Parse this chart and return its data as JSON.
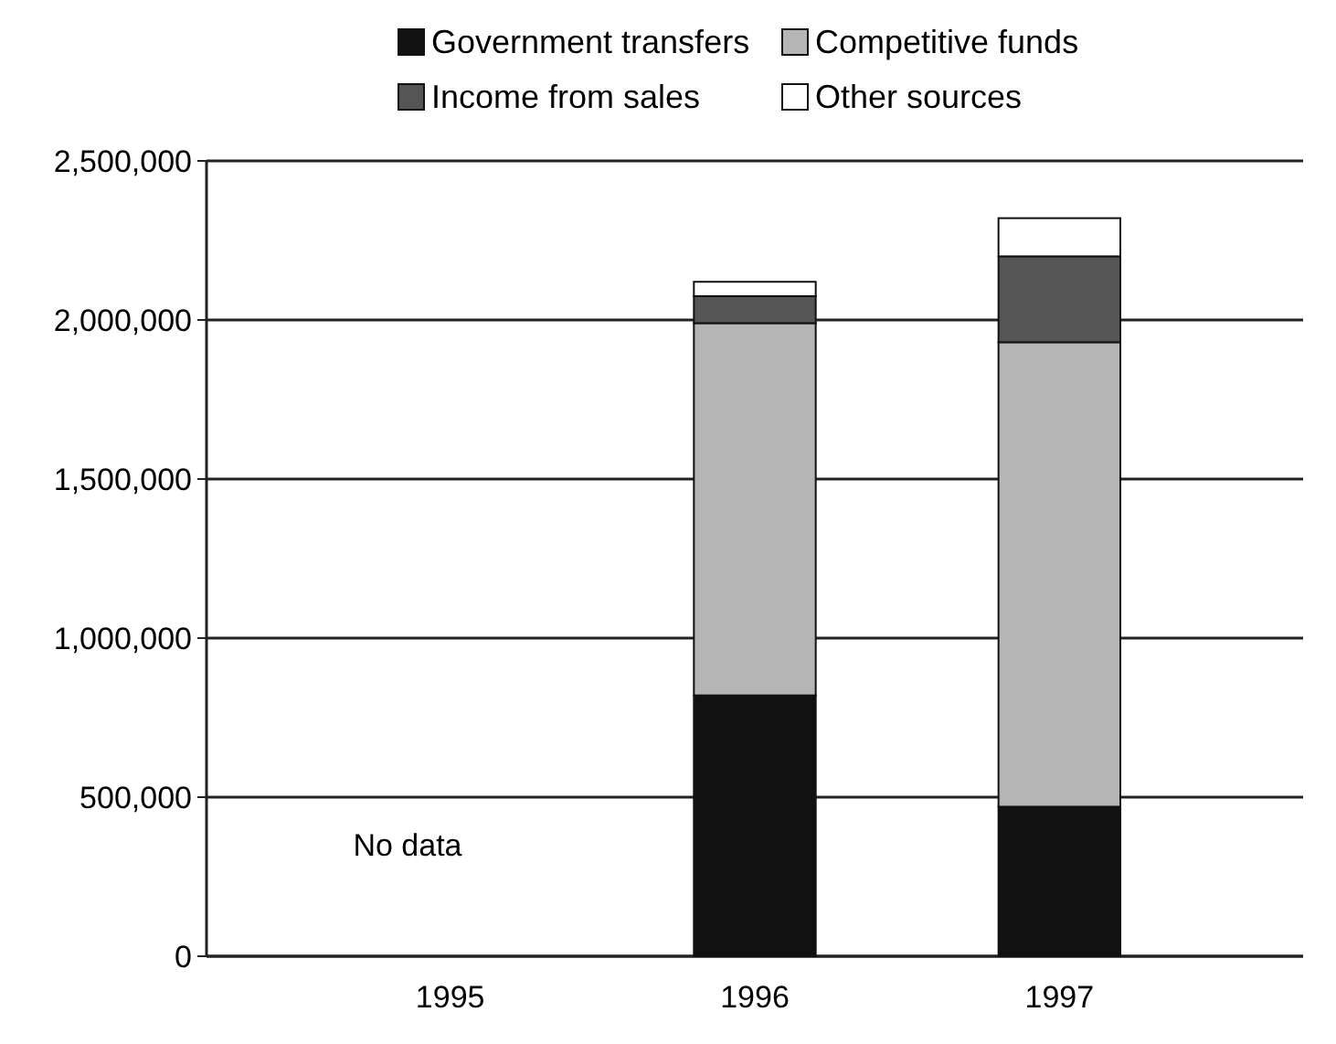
{
  "chart_data": {
    "type": "bar",
    "stacked": true,
    "categories": [
      "1995",
      "1996",
      "1997"
    ],
    "series": [
      {
        "name": "Government transfers",
        "color": "#111111",
        "values": [
          null,
          820000,
          470000
        ]
      },
      {
        "name": "Competitive funds",
        "color": "#b5b5b5",
        "values": [
          null,
          1170000,
          1460000
        ]
      },
      {
        "name": "Income from sales",
        "color": "#555555",
        "values": [
          null,
          85000,
          270000
        ]
      },
      {
        "name": "Other sources",
        "color": "#ffffff",
        "values": [
          null,
          45000,
          120000
        ]
      }
    ],
    "ylim": [
      0,
      2500000
    ],
    "yticks": [
      {
        "value": 0,
        "label": "0"
      },
      {
        "value": 500000,
        "label": "500,000"
      },
      {
        "value": 1000000,
        "label": "1,000,000"
      },
      {
        "value": 1500000,
        "label": "1,500,000"
      },
      {
        "value": 2000000,
        "label": "2,000,000"
      },
      {
        "value": 2500000,
        "label": "2,500,000"
      }
    ],
    "grid": "y",
    "legend": "top",
    "annotations": [
      "No data"
    ]
  }
}
